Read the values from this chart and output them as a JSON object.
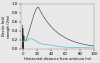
{
  "title": "",
  "xlabel": "Horizontal distance from antenna (m)",
  "ylabel": "Electric field\nstrength (V/m)",
  "xlim": [
    -2,
    100
  ],
  "ylim": [
    0,
    1.0
  ],
  "upper_color": "#303030",
  "lower_color": "#40c0d0",
  "bg_color": "#e8e8e8",
  "figsize": [
    1.0,
    0.63
  ],
  "dpi": 100
}
